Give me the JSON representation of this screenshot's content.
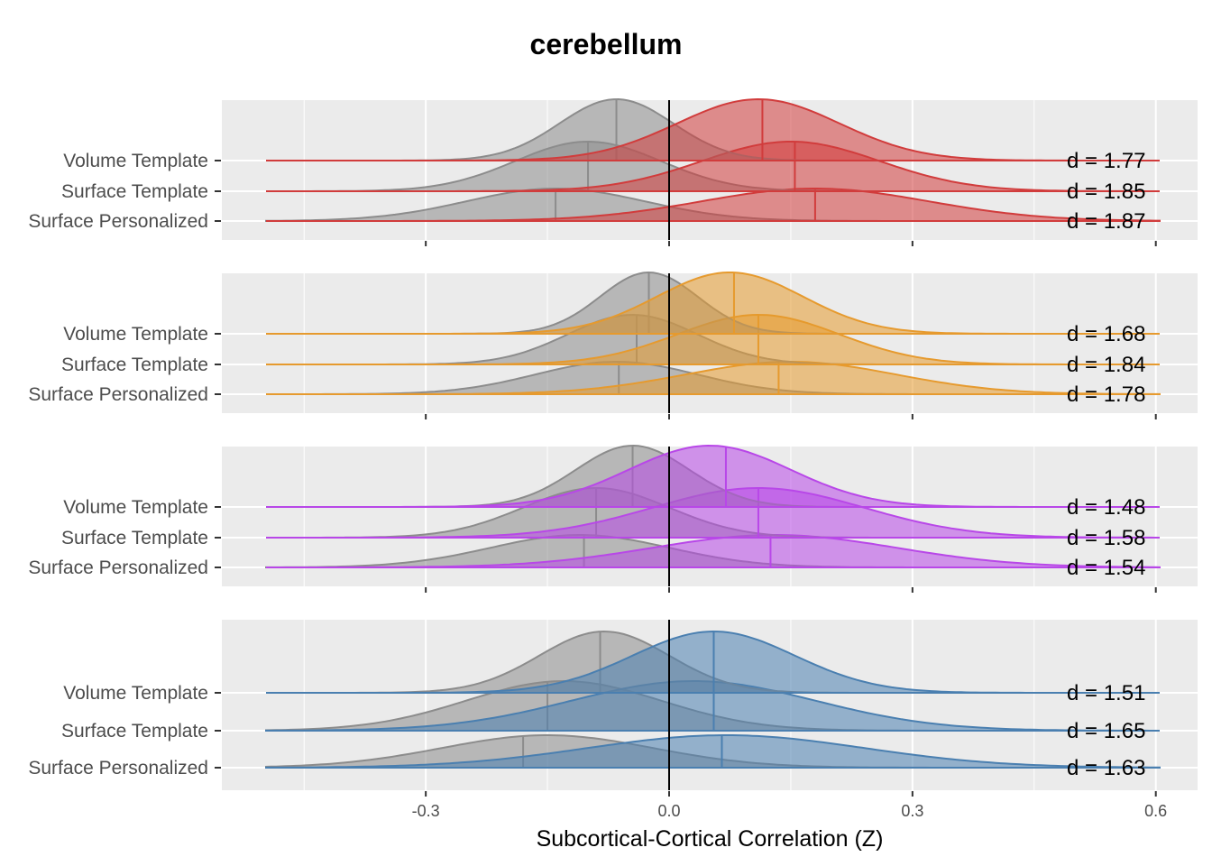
{
  "chart_data": {
    "type": "ridgeline-density",
    "title": "cerebellum",
    "xlabel": "Subcortical-Cortical Correlation (Z)",
    "xlim": [
      -0.55,
      0.6
    ],
    "x_ticks": [
      -0.3,
      0.0,
      0.3,
      0.6
    ],
    "x_tick_labels": [
      "-0.3",
      "0.0",
      "0.3",
      "0.6"
    ],
    "vline_x": 0.0,
    "row_labels": [
      "Volume Template",
      "Surface Template",
      "Surface Personalized"
    ],
    "panels": [
      {
        "color": "#d13c3c",
        "rows": [
          {
            "label": "Volume Template",
            "gray_mode": -0.065,
            "gray_median": -0.065,
            "gray_sd": 0.07,
            "color_mode": 0.11,
            "color_median": 0.115,
            "color_sd": 0.1,
            "cohen_d": "d = 1.77"
          },
          {
            "label": "Surface Template",
            "gray_mode": -0.1,
            "gray_median": -0.1,
            "gray_sd": 0.09,
            "color_mode": 0.15,
            "color_median": 0.155,
            "color_sd": 0.11,
            "cohen_d": "d = 1.85"
          },
          {
            "label": "Surface Personalized",
            "gray_mode": -0.14,
            "gray_median": -0.14,
            "gray_sd": 0.11,
            "color_mode": 0.18,
            "color_median": 0.18,
            "color_sd": 0.14,
            "cohen_d": "d = 1.87"
          }
        ]
      },
      {
        "color": "#e69a2e",
        "rows": [
          {
            "label": "Volume Template",
            "gray_mode": -0.025,
            "gray_median": -0.025,
            "gray_sd": 0.06,
            "color_mode": 0.075,
            "color_median": 0.08,
            "color_sd": 0.09,
            "cohen_d": "d = 1.68"
          },
          {
            "label": "Surface Template",
            "gray_mode": -0.045,
            "gray_median": -0.04,
            "gray_sd": 0.08,
            "color_mode": 0.11,
            "color_median": 0.11,
            "color_sd": 0.1,
            "cohen_d": "d = 1.84"
          },
          {
            "label": "Surface Personalized",
            "gray_mode": -0.065,
            "gray_median": -0.062,
            "gray_sd": 0.1,
            "color_mode": 0.15,
            "color_median": 0.135,
            "color_sd": 0.13,
            "cohen_d": "d = 1.78"
          }
        ]
      },
      {
        "color": "#b847e8",
        "rows": [
          {
            "label": "Volume Template",
            "gray_mode": -0.045,
            "gray_median": -0.045,
            "gray_sd": 0.07,
            "color_mode": 0.05,
            "color_median": 0.07,
            "color_sd": 0.1,
            "cohen_d": "d = 1.48"
          },
          {
            "label": "Surface Template",
            "gray_mode": -0.09,
            "gray_median": -0.09,
            "gray_sd": 0.09,
            "color_mode": 0.11,
            "color_median": 0.11,
            "color_sd": 0.13,
            "cohen_d": "d = 1.58"
          },
          {
            "label": "Surface Personalized",
            "gray_mode": -0.11,
            "gray_median": -0.105,
            "gray_sd": 0.11,
            "color_mode": 0.13,
            "color_median": 0.125,
            "color_sd": 0.15,
            "cohen_d": "d = 1.54"
          }
        ]
      },
      {
        "color": "#4a7fb0",
        "rows": [
          {
            "label": "Volume Template",
            "gray_mode": -0.08,
            "gray_median": -0.085,
            "gray_sd": 0.08,
            "color_mode": 0.055,
            "color_median": 0.055,
            "color_sd": 0.1,
            "cohen_d": "d = 1.51"
          },
          {
            "label": "Surface Template",
            "gray_mode": -0.13,
            "gray_median": -0.15,
            "gray_sd": 0.12,
            "color_mode": 0.03,
            "color_median": 0.055,
            "color_sd": 0.15,
            "cohen_d": "d = 1.65"
          },
          {
            "label": "Surface Personalized",
            "gray_mode": -0.15,
            "gray_median": -0.18,
            "gray_sd": 0.13,
            "color_mode": 0.07,
            "color_median": 0.065,
            "color_sd": 0.17,
            "cohen_d": "d = 1.63"
          }
        ]
      }
    ],
    "gray_color": "#8c8c8c",
    "panel_background": "#ebebeb",
    "grid": true
  }
}
